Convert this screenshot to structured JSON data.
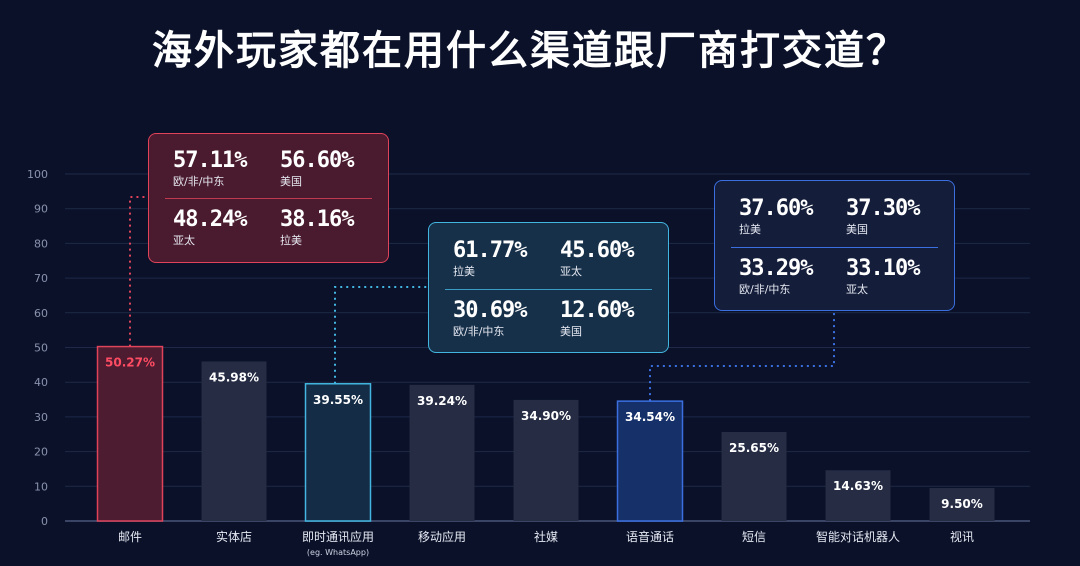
{
  "title": "海外玩家都在用什么渠道跟厂商打交道？",
  "colors": {
    "background": "#0a1129",
    "bar_default": "#252c44",
    "bar_email": "#4d1c31",
    "bar_email_border": "#e0435a",
    "bar_im": "#142c46",
    "bar_im_border": "#42b6e0",
    "bar_voice": "#16306a",
    "bar_voice_border": "#3b6fe0",
    "grid": "#1e2a47"
  },
  "chart_data": {
    "type": "bar",
    "categories": [
      "邮件",
      "实体店",
      "即时通讯应用",
      "移动应用",
      "社媒",
      "语音通话",
      "短信",
      "智能对话机器人",
      "视讯"
    ],
    "category_sublabels": [
      "",
      "",
      "(eg. WhatsApp)",
      "",
      "",
      "",
      "",
      "",
      ""
    ],
    "values": [
      50.27,
      45.98,
      39.55,
      39.24,
      34.9,
      34.54,
      25.65,
      14.63,
      9.5
    ],
    "value_labels": [
      "50.27%",
      "45.98%",
      "39.55%",
      "39.24%",
      "34.90%",
      "34.54%",
      "25.65%",
      "14.63%",
      "9.50%"
    ],
    "yticks": [
      "0",
      "10",
      "20",
      "30",
      "40",
      "50",
      "60",
      "70",
      "80",
      "90",
      "100"
    ],
    "ylim": [
      0,
      100
    ],
    "grid": true,
    "highlights": [
      "邮件",
      "即时通讯应用",
      "语音通话"
    ]
  },
  "callouts": {
    "email": {
      "items": [
        {
          "value": "57.11%",
          "region": "欧/非/中东"
        },
        {
          "value": "56.60%",
          "region": "美国"
        },
        {
          "value": "48.24%",
          "region": "亚太"
        },
        {
          "value": "38.16%",
          "region": "拉美"
        }
      ]
    },
    "im": {
      "items": [
        {
          "value": "61.77%",
          "region": "拉美"
        },
        {
          "value": "45.60%",
          "region": "亚太"
        },
        {
          "value": "30.69%",
          "region": "欧/非/中东"
        },
        {
          "value": "12.60%",
          "region": "美国"
        }
      ]
    },
    "voice": {
      "items": [
        {
          "value": "37.60%",
          "region": "拉美"
        },
        {
          "value": "37.30%",
          "region": "美国"
        },
        {
          "value": "33.29%",
          "region": "欧/非/中东"
        },
        {
          "value": "33.10%",
          "region": "亚太"
        }
      ]
    }
  }
}
